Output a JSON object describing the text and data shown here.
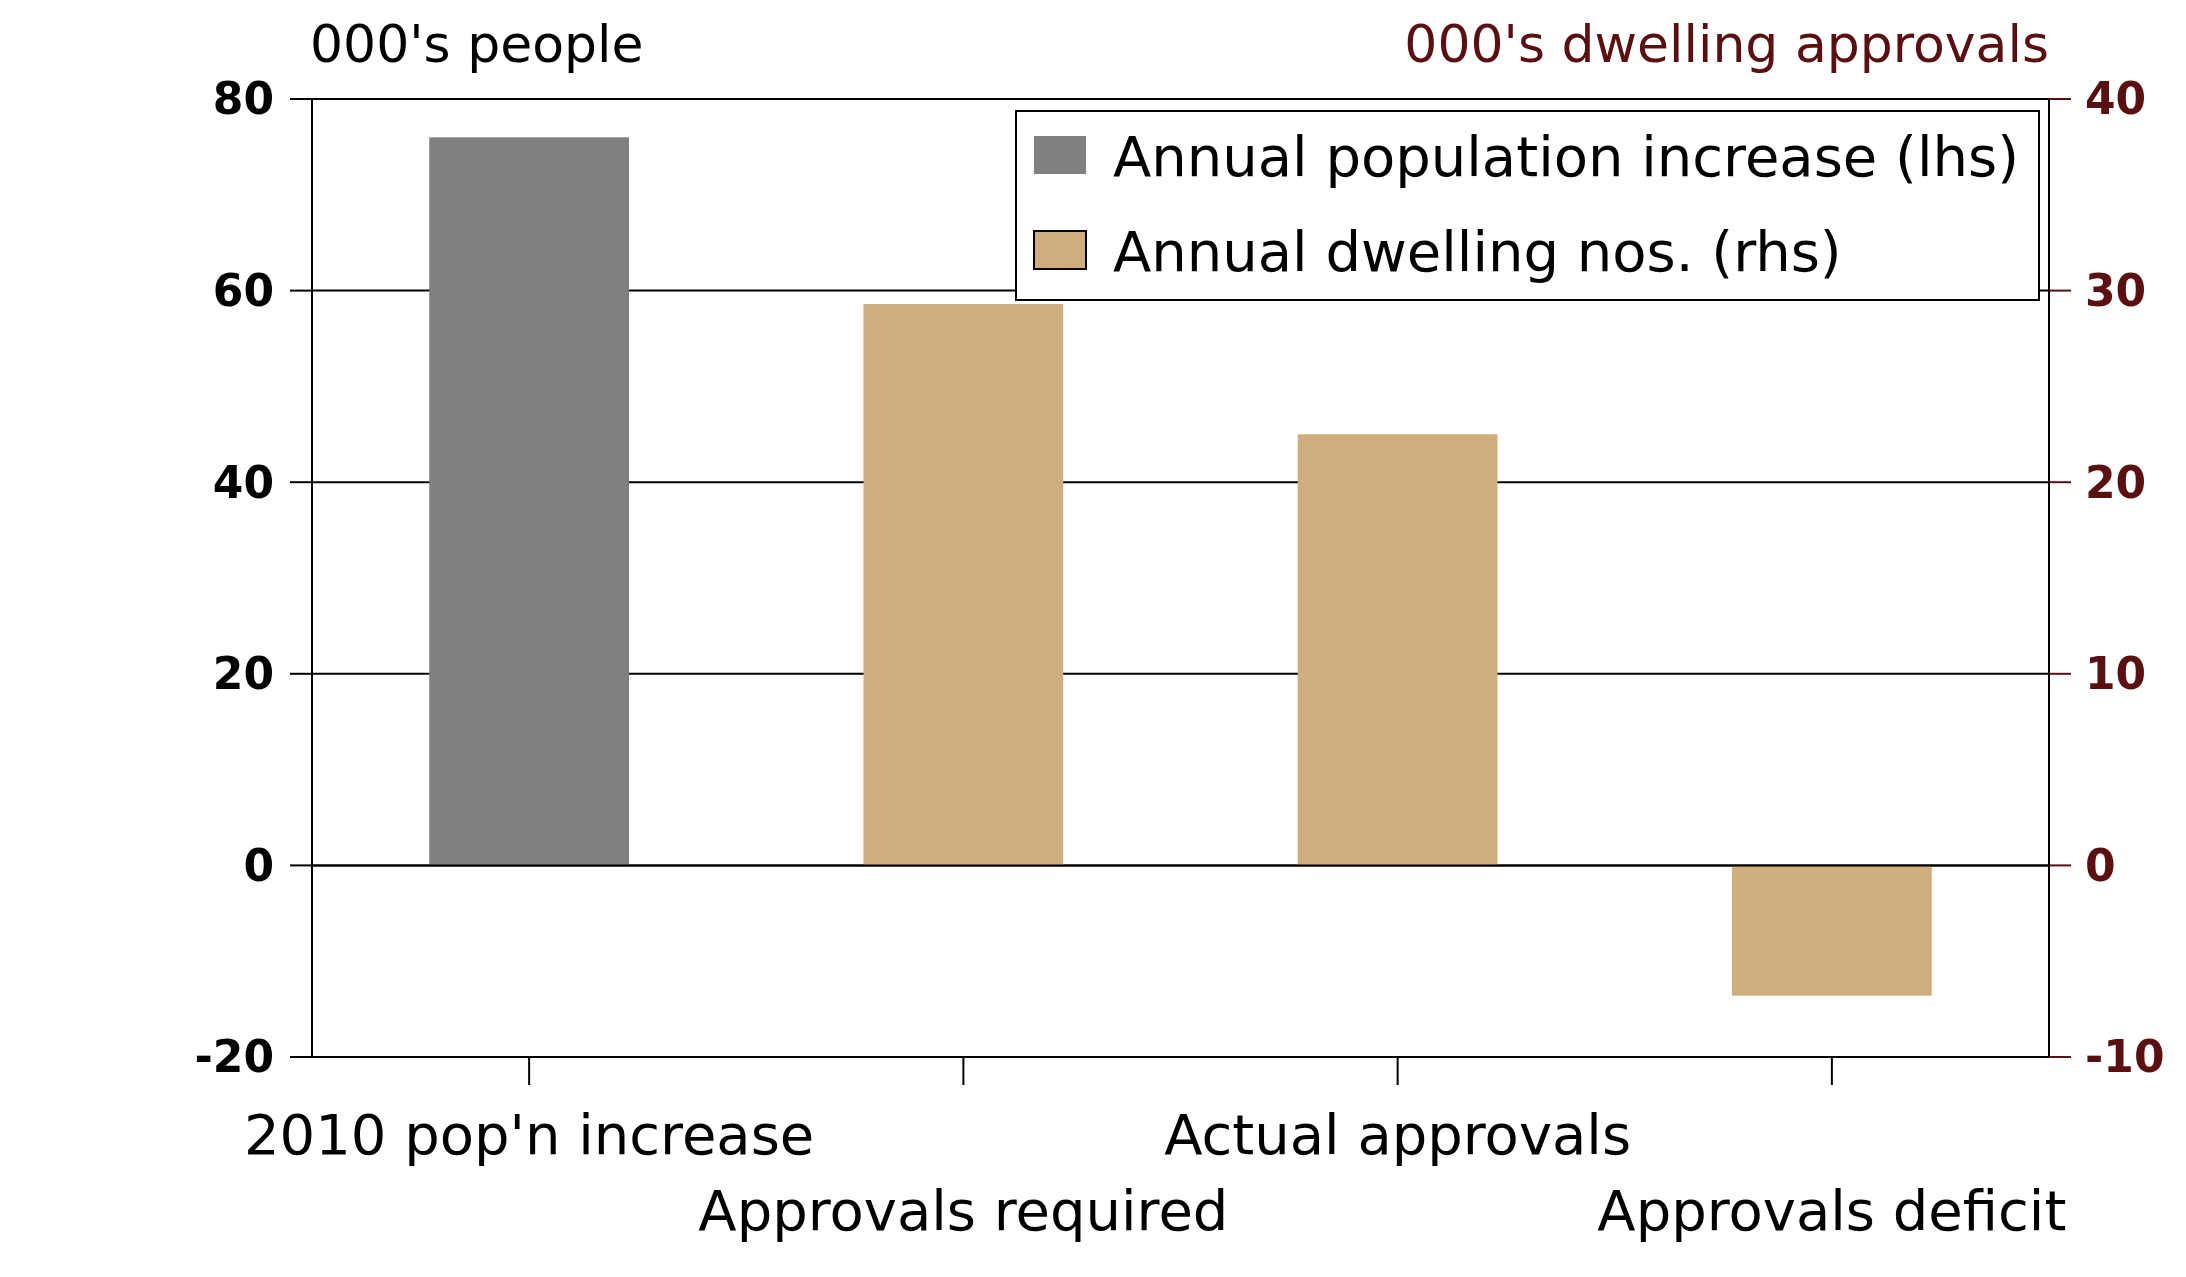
{
  "chart_data": {
    "type": "bar",
    "ylabel": "000's people",
    "y2label": "000's dwelling approvals",
    "categories": [
      "2010 pop'n increase",
      "Approvals required",
      "Actual approvals",
      "Approvals deficit"
    ],
    "series": [
      {
        "name": "Annual population increase (lhs)",
        "color": "#808080",
        "values": [
          76,
          null,
          null,
          null
        ]
      },
      {
        "name": "Annual dwelling nos. (rhs)",
        "color": "#cfad7d",
        "axis": "y2",
        "values": [
          null,
          29.3,
          22.5,
          -6.8
        ]
      }
    ],
    "ylim": [
      -20,
      80
    ],
    "yticks": [
      -20,
      0,
      20,
      40,
      60,
      80
    ],
    "y2lim": [
      -10,
      40
    ],
    "y2ticks": [
      -10,
      0,
      10,
      20,
      30,
      40
    ],
    "grid": "y",
    "legend": "top right"
  }
}
